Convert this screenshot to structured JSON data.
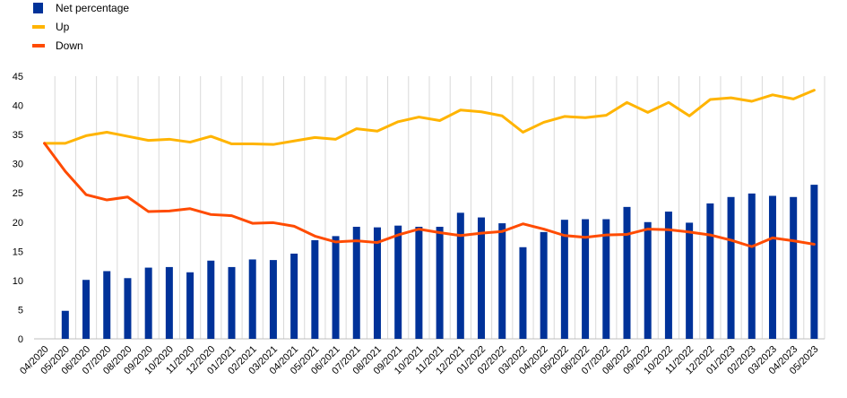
{
  "chart_data": {
    "type": "bar+line",
    "categories": [
      "04/2020",
      "05/2020",
      "06/2020",
      "07/2020",
      "08/2020",
      "09/2020",
      "10/2020",
      "11/2020",
      "12/2020",
      "01/2021",
      "02/2021",
      "03/2021",
      "04/2021",
      "05/2021",
      "06/2021",
      "07/2021",
      "08/2021",
      "09/2021",
      "10/2021",
      "11/2021",
      "12/2021",
      "01/2022",
      "02/2022",
      "03/2022",
      "04/2022",
      "05/2022",
      "06/2022",
      "07/2022",
      "08/2022",
      "09/2022",
      "10/2022",
      "11/2022",
      "12/2022",
      "01/2023",
      "02/2023",
      "03/2023",
      "04/2023",
      "05/2023"
    ],
    "ylim": [
      0,
      45
    ],
    "yticks": [
      0,
      5,
      10,
      15,
      20,
      25,
      30,
      35,
      40,
      45
    ],
    "grid": "vertical",
    "legend_position": "top-left",
    "series": [
      {
        "name": "Net percentage",
        "type": "bar",
        "color": "#003299",
        "values": [
          null,
          4.8,
          10.1,
          11.6,
          10.4,
          12.2,
          12.3,
          11.4,
          13.4,
          12.3,
          13.6,
          13.5,
          14.6,
          16.9,
          17.6,
          19.2,
          19.1,
          19.4,
          19.2,
          19.2,
          21.6,
          20.8,
          19.8,
          15.7,
          18.3,
          20.4,
          20.5,
          20.5,
          22.6,
          20.0,
          21.8,
          19.9,
          23.2,
          24.3,
          24.9,
          24.5,
          24.3,
          26.4
        ]
      },
      {
        "name": "Up",
        "type": "line",
        "color": "#FFB400",
        "values": [
          33.5,
          33.5,
          34.8,
          35.4,
          34.7,
          34.0,
          34.2,
          33.7,
          34.7,
          33.4,
          33.4,
          33.3,
          33.9,
          34.5,
          34.2,
          36.0,
          35.6,
          37.2,
          38.0,
          37.4,
          39.2,
          38.9,
          38.2,
          35.4,
          37.1,
          38.1,
          37.9,
          38.3,
          40.5,
          38.8,
          40.5,
          38.2,
          41.0,
          41.3,
          40.7,
          41.8,
          41.1,
          42.6
        ]
      },
      {
        "name": "Down",
        "type": "line",
        "color": "#FF4B00",
        "values": [
          33.5,
          28.7,
          24.7,
          23.8,
          24.3,
          21.8,
          21.9,
          22.3,
          21.3,
          21.1,
          19.8,
          19.9,
          19.3,
          17.6,
          16.6,
          16.8,
          16.5,
          17.8,
          18.8,
          18.2,
          17.7,
          18.1,
          18.4,
          19.7,
          18.8,
          17.7,
          17.4,
          17.8,
          17.9,
          18.8,
          18.7,
          18.3,
          17.8,
          16.9,
          15.8,
          17.3,
          16.8,
          16.2
        ]
      }
    ]
  }
}
